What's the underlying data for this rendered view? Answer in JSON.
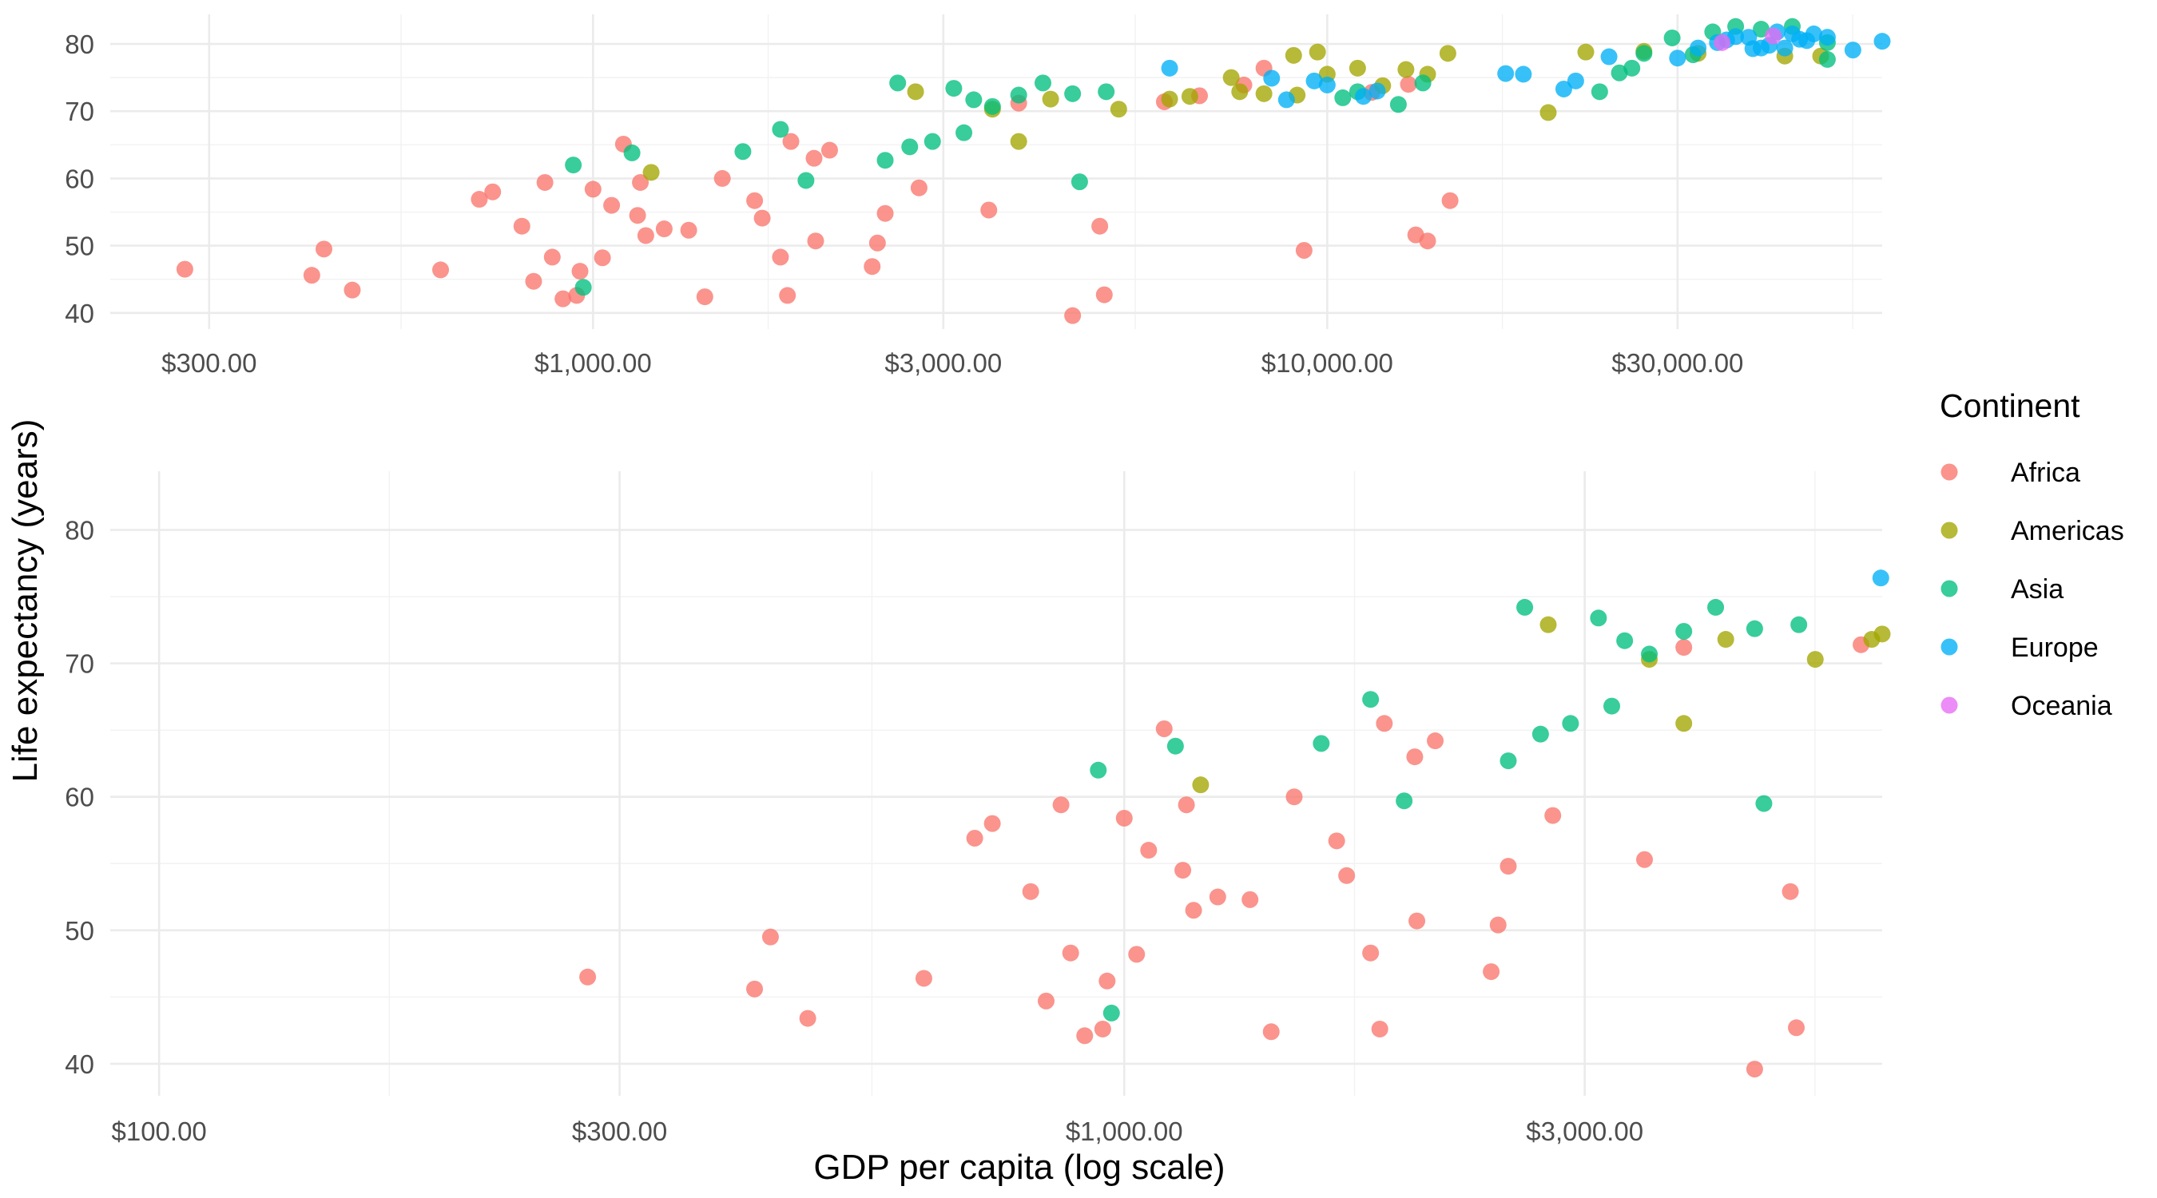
{
  "chart_data": [
    {
      "type": "scatter",
      "x_scale": "log",
      "xlim": [
        220,
        57000
      ],
      "ylim": [
        37.6,
        84.4
      ],
      "grid": true,
      "x_ticks": [
        300,
        1000,
        3000,
        10000,
        30000
      ],
      "x_tick_labels": [
        "$300.00",
        "$1,000.00",
        "$3,000.00",
        "$10,000.00",
        "$30,000.00"
      ],
      "y_ticks": [
        40,
        50,
        60,
        70,
        80
      ],
      "y_tick_labels": [
        "40",
        "50",
        "60",
        "70",
        "80"
      ],
      "series": [
        {
          "name": "Africa",
          "points": [
            [
              278,
              46.5
            ],
            [
              414,
              45.6
            ],
            [
              430,
              49.5
            ],
            [
              470,
              43.4
            ],
            [
              620,
              46.4
            ],
            [
              700,
              56.9
            ],
            [
              730,
              58.0
            ],
            [
              800,
              52.9
            ],
            [
              830,
              44.7
            ],
            [
              860,
              59.4
            ],
            [
              880,
              48.3
            ],
            [
              910,
              42.1
            ],
            [
              950,
              42.6
            ],
            [
              960,
              46.2
            ],
            [
              1000,
              58.4
            ],
            [
              1030,
              48.2
            ],
            [
              1060,
              56.0
            ],
            [
              1100,
              65.1
            ],
            [
              1150,
              54.5
            ],
            [
              1160,
              59.4
            ],
            [
              1180,
              51.5
            ],
            [
              1250,
              52.5
            ],
            [
              1350,
              52.3
            ],
            [
              1420,
              42.4
            ],
            [
              1500,
              60.0
            ],
            [
              1660,
              56.7
            ],
            [
              1700,
              54.1
            ],
            [
              1800,
              48.3
            ],
            [
              1840,
              42.6
            ],
            [
              1860,
              65.5
            ],
            [
              2000,
              63.0
            ],
            [
              2010,
              50.7
            ],
            [
              2100,
              64.2
            ],
            [
              2400,
              46.9
            ],
            [
              2440,
              50.4
            ],
            [
              2500,
              54.8
            ],
            [
              2780,
              58.6
            ],
            [
              3460,
              55.3
            ],
            [
              3800,
              71.2
            ],
            [
              4500,
              39.6
            ],
            [
              4900,
              52.9
            ],
            [
              4970,
              42.7
            ],
            [
              6000,
              71.4
            ],
            [
              6700,
              72.3
            ],
            [
              7700,
              73.9
            ],
            [
              8200,
              76.4
            ],
            [
              9300,
              49.3
            ],
            [
              11500,
              72.8
            ],
            [
              12900,
              74.0
            ],
            [
              13200,
              51.6
            ],
            [
              13700,
              50.7
            ],
            [
              14700,
              56.7
            ]
          ]
        },
        {
          "name": "Americas",
          "points": [
            [
              1200,
              60.9
            ],
            [
              2750,
              72.9
            ],
            [
              3500,
              70.3
            ],
            [
              3800,
              65.5
            ],
            [
              4200,
              71.8
            ],
            [
              5200,
              70.3
            ],
            [
              6100,
              71.8
            ],
            [
              6500,
              72.2
            ],
            [
              7400,
              75.0
            ],
            [
              7600,
              72.9
            ],
            [
              8200,
              72.6
            ],
            [
              9000,
              78.3
            ],
            [
              9100,
              72.4
            ],
            [
              9700,
              78.8
            ],
            [
              10000,
              75.5
            ],
            [
              11000,
              76.4
            ],
            [
              11900,
              73.8
            ],
            [
              12800,
              76.2
            ],
            [
              13700,
              75.5
            ],
            [
              14600,
              78.6
            ],
            [
              20000,
              69.8
            ],
            [
              22500,
              78.8
            ],
            [
              27000,
              78.9
            ],
            [
              32000,
              78.6
            ],
            [
              42000,
              78.2
            ],
            [
              47000,
              78.2
            ]
          ]
        },
        {
          "name": "Asia",
          "points": [
            [
              940,
              62.0
            ],
            [
              970,
              43.8
            ],
            [
              1130,
              63.8
            ],
            [
              1600,
              64.0
            ],
            [
              1800,
              67.3
            ],
            [
              1950,
              59.7
            ],
            [
              2500,
              62.7
            ],
            [
              2600,
              74.2
            ],
            [
              2700,
              64.7
            ],
            [
              2900,
              65.5
            ],
            [
              3100,
              73.4
            ],
            [
              3200,
              66.8
            ],
            [
              3300,
              71.7
            ],
            [
              3500,
              70.7
            ],
            [
              3800,
              72.4
            ],
            [
              4100,
              74.2
            ],
            [
              4500,
              72.6
            ],
            [
              4600,
              59.5
            ],
            [
              5000,
              72.9
            ],
            [
              10500,
              72.0
            ],
            [
              11000,
              72.9
            ],
            [
              12500,
              71.0
            ],
            [
              13500,
              74.2
            ],
            [
              23500,
              72.9
            ],
            [
              25000,
              75.7
            ],
            [
              26000,
              76.4
            ],
            [
              27000,
              78.6
            ],
            [
              29500,
              80.9
            ],
            [
              31500,
              78.4
            ],
            [
              33500,
              81.8
            ],
            [
              36000,
              82.6
            ],
            [
              39000,
              82.2
            ],
            [
              43000,
              82.6
            ],
            [
              48000,
              77.7
            ],
            [
              48000,
              80.2
            ]
          ]
        },
        {
          "name": "Europe",
          "points": [
            [
              6100,
              76.4
            ],
            [
              8400,
              74.9
            ],
            [
              8800,
              71.7
            ],
            [
              9600,
              74.5
            ],
            [
              10000,
              73.9
            ],
            [
              11200,
              72.2
            ],
            [
              11700,
              73.0
            ],
            [
              17500,
              75.6
            ],
            [
              18500,
              75.5
            ],
            [
              21000,
              73.3
            ],
            [
              21800,
              74.5
            ],
            [
              24200,
              78.1
            ],
            [
              30000,
              77.9
            ],
            [
              32000,
              79.4
            ],
            [
              34000,
              80.2
            ],
            [
              35000,
              80.6
            ],
            [
              36000,
              81.1
            ],
            [
              37500,
              81.0
            ],
            [
              38000,
              79.3
            ],
            [
              39000,
              79.4
            ],
            [
              40000,
              79.8
            ],
            [
              41000,
              81.8
            ],
            [
              42000,
              79.4
            ],
            [
              43000,
              81.5
            ],
            [
              44000,
              80.7
            ],
            [
              45000,
              80.5
            ],
            [
              46000,
              81.5
            ],
            [
              48000,
              81.0
            ],
            [
              52000,
              79.1
            ],
            [
              57000,
              80.4
            ]
          ]
        },
        {
          "name": "Oceania",
          "points": [
            [
              34500,
              80.2
            ],
            [
              40500,
              81.2
            ]
          ]
        }
      ]
    },
    {
      "type": "scatter",
      "x_scale": "log",
      "xlim": [
        89,
        6100
      ],
      "ylim": [
        37.6,
        84.4
      ],
      "grid": true,
      "x_ticks": [
        100,
        300,
        1000,
        3000
      ],
      "x_tick_labels": [
        "$100.00",
        "$300.00",
        "$1,000.00",
        "$3,000.00"
      ],
      "y_ticks": [
        40,
        50,
        60,
        70,
        80
      ],
      "y_tick_labels": [
        "40",
        "50",
        "60",
        "70",
        "80"
      ],
      "series": [
        {
          "name": "Africa",
          "points": [
            [
              278,
              46.5
            ],
            [
              414,
              45.6
            ],
            [
              430,
              49.5
            ],
            [
              470,
              43.4
            ],
            [
              620,
              46.4
            ],
            [
              700,
              56.9
            ],
            [
              730,
              58.0
            ],
            [
              800,
              52.9
            ],
            [
              830,
              44.7
            ],
            [
              860,
              59.4
            ],
            [
              880,
              48.3
            ],
            [
              910,
              42.1
            ],
            [
              950,
              42.6
            ],
            [
              960,
              46.2
            ],
            [
              1000,
              58.4
            ],
            [
              1030,
              48.2
            ],
            [
              1060,
              56.0
            ],
            [
              1100,
              65.1
            ],
            [
              1150,
              54.5
            ],
            [
              1160,
              59.4
            ],
            [
              1180,
              51.5
            ],
            [
              1250,
              52.5
            ],
            [
              1350,
              52.3
            ],
            [
              1420,
              42.4
            ],
            [
              1500,
              60.0
            ],
            [
              1660,
              56.7
            ],
            [
              1700,
              54.1
            ],
            [
              1800,
              48.3
            ],
            [
              1840,
              42.6
            ],
            [
              1860,
              65.5
            ],
            [
              2000,
              63.0
            ],
            [
              2010,
              50.7
            ],
            [
              2100,
              64.2
            ],
            [
              2400,
              46.9
            ],
            [
              2440,
              50.4
            ],
            [
              2500,
              54.8
            ],
            [
              2780,
              58.6
            ],
            [
              3460,
              55.3
            ],
            [
              3800,
              71.2
            ],
            [
              4500,
              39.6
            ],
            [
              4900,
              52.9
            ],
            [
              4970,
              42.7
            ],
            [
              5800,
              71.4
            ]
          ]
        },
        {
          "name": "Americas",
          "points": [
            [
              1200,
              60.9
            ],
            [
              2750,
              72.9
            ],
            [
              3500,
              70.3
            ],
            [
              3800,
              65.5
            ],
            [
              4200,
              71.8
            ],
            [
              5200,
              70.3
            ],
            [
              5950,
              71.8
            ],
            [
              6100,
              72.2
            ]
          ]
        },
        {
          "name": "Asia",
          "points": [
            [
              940,
              62.0
            ],
            [
              970,
              43.8
            ],
            [
              1130,
              63.8
            ],
            [
              1600,
              64.0
            ],
            [
              1800,
              67.3
            ],
            [
              1950,
              59.7
            ],
            [
              2500,
              62.7
            ],
            [
              2600,
              74.2
            ],
            [
              2700,
              64.7
            ],
            [
              2900,
              65.5
            ],
            [
              3100,
              73.4
            ],
            [
              3200,
              66.8
            ],
            [
              3300,
              71.7
            ],
            [
              3500,
              70.7
            ],
            [
              3800,
              72.4
            ],
            [
              4100,
              74.2
            ],
            [
              4500,
              72.6
            ],
            [
              4600,
              59.5
            ],
            [
              5000,
              72.9
            ]
          ]
        },
        {
          "name": "Europe",
          "points": [
            [
              6080,
              76.4
            ]
          ]
        },
        {
          "name": "Oceania",
          "points": []
        }
      ]
    }
  ],
  "labels": {
    "ylabel": "Life expectancy (years)",
    "xlabel": "GDP per capita (log scale)"
  },
  "legend": {
    "title": "Continent",
    "placement": "right",
    "items": [
      {
        "label": "Africa",
        "color": "#F8766D"
      },
      {
        "label": "Americas",
        "color": "#A3A500"
      },
      {
        "label": "Asia",
        "color": "#00BF7D"
      },
      {
        "label": "Europe",
        "color": "#00B0F6"
      },
      {
        "label": "Oceania",
        "color": "#E76BF3"
      }
    ]
  }
}
